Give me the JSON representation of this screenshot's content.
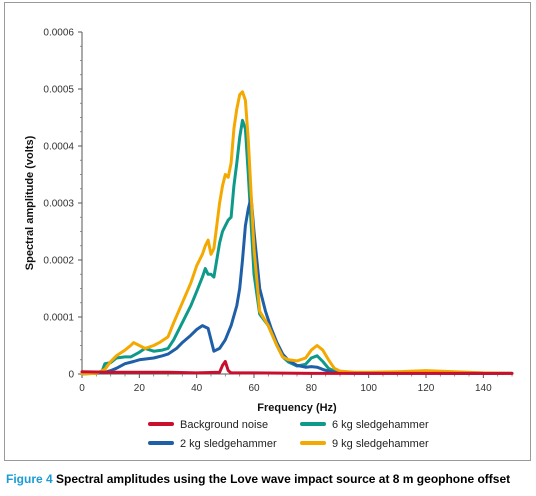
{
  "chart_data": {
    "type": "line",
    "xlabel": "Frequency (Hz)",
    "ylabel": "Spectral amplitude (volts)",
    "xlim": [
      0,
      150
    ],
    "ylim": [
      0,
      0.0006
    ],
    "xticks": [
      "0",
      "20",
      "40",
      "60",
      "80",
      "100",
      "120",
      "140"
    ],
    "yticks": [
      "0",
      "0.0001",
      "0.0002",
      "0.0003",
      "0.0004",
      "0.0005",
      "0.0006"
    ],
    "grid": false,
    "legend_position": "bottom",
    "series": [
      {
        "name": "Background noise",
        "color": "#c8102e",
        "x": [
          0,
          10,
          20,
          30,
          40,
          48,
          49,
          50,
          51,
          52,
          60,
          80,
          100,
          120,
          150
        ],
        "y": [
          4e-06,
          3e-06,
          3e-06,
          3e-06,
          2e-06,
          3e-06,
          1.5e-05,
          2.2e-05,
          6e-06,
          2e-06,
          2e-06,
          1e-06,
          1e-06,
          1e-06,
          1e-06
        ]
      },
      {
        "name": "6 kg sledgehammer",
        "color": "#0e9a8a",
        "x": [
          0,
          5,
          7,
          8,
          10,
          12,
          15,
          17,
          20,
          22,
          25,
          28,
          30,
          32,
          35,
          38,
          40,
          42,
          43,
          44,
          45,
          46,
          48,
          49,
          50,
          51,
          52,
          53,
          54,
          55,
          56,
          57,
          58,
          60,
          62,
          65,
          68,
          70,
          72,
          75,
          78,
          80,
          82,
          84,
          86,
          88,
          90,
          95,
          100,
          110,
          120,
          130,
          140,
          150
        ],
        "y": [
          5e-07,
          1e-06,
          5e-06,
          1.8e-05,
          2e-05,
          2.8e-05,
          3e-05,
          3e-05,
          3.8e-05,
          4.5e-05,
          4e-05,
          4.2e-05,
          4.5e-05,
          6e-05,
          9e-05,
          0.00012,
          0.000145,
          0.00017,
          0.000185,
          0.000175,
          0.000175,
          0.00017,
          0.00023,
          0.00025,
          0.00026,
          0.00027,
          0.000275,
          0.00033,
          0.00037,
          0.000415,
          0.000445,
          0.00043,
          0.00035,
          0.000175,
          0.000105,
          8.5e-05,
          5e-05,
          3e-05,
          2.1e-05,
          1.4e-05,
          1.7e-05,
          2.8e-05,
          3.2e-05,
          2.2e-05,
          1e-05,
          5e-06,
          3e-06,
          2e-06,
          1e-06,
          3e-06,
          2e-06,
          1e-06,
          1e-06,
          1e-06
        ]
      },
      {
        "name": "2 kg sledgehammer",
        "color": "#1f5fa8",
        "x": [
          0,
          5,
          8,
          10,
          12,
          15,
          18,
          20,
          25,
          28,
          30,
          33,
          35,
          38,
          40,
          42,
          44,
          45,
          46,
          48,
          50,
          52,
          54,
          55,
          56,
          57,
          58,
          59,
          60,
          62,
          64,
          66,
          68,
          70,
          72,
          75,
          78,
          80,
          82,
          84,
          86,
          88,
          90,
          95,
          100,
          120,
          150
        ],
        "y": [
          5e-07,
          1e-06,
          3e-06,
          6e-06,
          1e-05,
          1.8e-05,
          2.2e-05,
          2.5e-05,
          2.8e-05,
          3.2e-05,
          3.5e-05,
          4.5e-05,
          5.5e-05,
          6.8e-05,
          7.8e-05,
          8.5e-05,
          8e-05,
          6e-05,
          4e-05,
          4.5e-05,
          6e-05,
          8.5e-05,
          0.00012,
          0.00015,
          0.0002,
          0.00026,
          0.00029,
          0.00031,
          0.00025,
          0.00015,
          0.00011,
          8e-05,
          5.5e-05,
          3.5e-05,
          2.4e-05,
          1.5e-05,
          1.2e-05,
          1.3e-05,
          1.2e-05,
          8e-06,
          5e-06,
          3e-06,
          2e-06,
          1e-06,
          1e-06,
          1e-06,
          1e-06
        ]
      },
      {
        "name": "9 kg sledgehammer",
        "color": "#f5a800",
        "x": [
          0,
          5,
          8,
          10,
          12,
          15,
          17,
          18,
          20,
          22,
          25,
          27,
          30,
          32,
          35,
          38,
          40,
          42,
          43,
          44,
          45,
          46,
          48,
          49,
          50,
          51,
          52,
          53,
          54,
          55,
          56,
          57,
          58,
          60,
          62,
          65,
          68,
          70,
          72,
          75,
          78,
          80,
          82,
          84,
          86,
          88,
          90,
          95,
          100,
          110,
          120,
          130,
          140,
          150
        ],
        "y": [
          5e-07,
          1e-06,
          8e-06,
          2.2e-05,
          3.2e-05,
          4.2e-05,
          5e-05,
          5.5e-05,
          5e-05,
          4.5e-05,
          5e-05,
          5.5e-05,
          6.5e-05,
          9e-05,
          0.000125,
          0.00016,
          0.00019,
          0.00021,
          0.000225,
          0.000235,
          0.00021,
          0.00022,
          0.0003,
          0.00033,
          0.00035,
          0.000345,
          0.00037,
          0.00043,
          0.000465,
          0.00049,
          0.000495,
          0.00048,
          0.00041,
          0.00022,
          0.00011,
          8.5e-05,
          5e-05,
          3e-05,
          2.5e-05,
          2.3e-05,
          2.8e-05,
          4.2e-05,
          5e-05,
          4.2e-05,
          2.5e-05,
          1e-05,
          5e-06,
          3e-06,
          3e-06,
          4e-06,
          6e-06,
          4e-06,
          2e-06,
          1e-06
        ]
      }
    ]
  },
  "caption": {
    "label": "Figure 4",
    "text": "Spectral amplitudes using the Love wave impact source at 8 m geophone offset"
  }
}
